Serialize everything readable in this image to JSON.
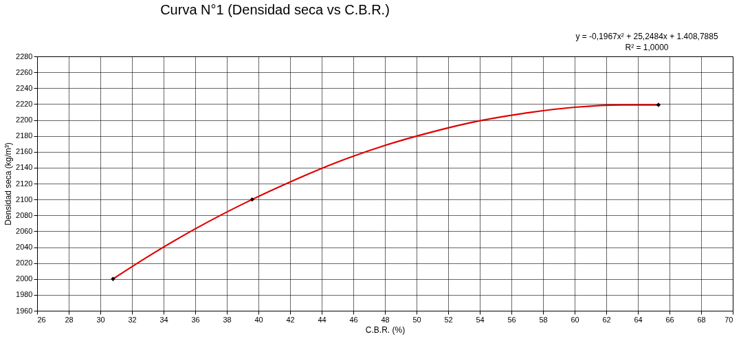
{
  "chart_data": {
    "type": "scatter",
    "title": "Curva N°1 (Densidad seca vs C.B.R.)",
    "xlabel": "C.B.R. (%)",
    "ylabel": "Densidad seca (kg/m³)",
    "series": [
      {
        "type": "line",
        "color": "#e00000",
        "marker": "none",
        "x": [
          30.8,
          33,
          36,
          39.6,
          42,
          45,
          48,
          51,
          54,
          57,
          60,
          63,
          65.3
        ],
        "values": [
          2000,
          2028,
          2063,
          2100,
          2122,
          2147,
          2168,
          2185,
          2199,
          2209,
          2216,
          2219,
          2219
        ]
      },
      {
        "color": "#000000",
        "marker": "diamond",
        "x": [
          30.8,
          39.6,
          65.3
        ],
        "values": [
          2000,
          2100,
          2219
        ]
      }
    ],
    "xlim": [
      26,
      70
    ],
    "xticks": [
      26,
      28,
      30,
      32,
      34,
      36,
      38,
      40,
      42,
      44,
      46,
      48,
      50,
      52,
      54,
      56,
      58,
      60,
      62,
      64,
      66,
      68,
      70
    ],
    "ylim": [
      1960,
      2280
    ],
    "yticks": [
      1960,
      1980,
      2000,
      2020,
      2040,
      2060,
      2080,
      2100,
      2120,
      2140,
      2160,
      2180,
      2200,
      2220,
      2240,
      2260,
      2280
    ],
    "grid": true,
    "legend": false,
    "annotations": [
      "y = -0,1967x² + 25,2484x + 1.408,7885",
      "R² = 1,0000"
    ]
  }
}
